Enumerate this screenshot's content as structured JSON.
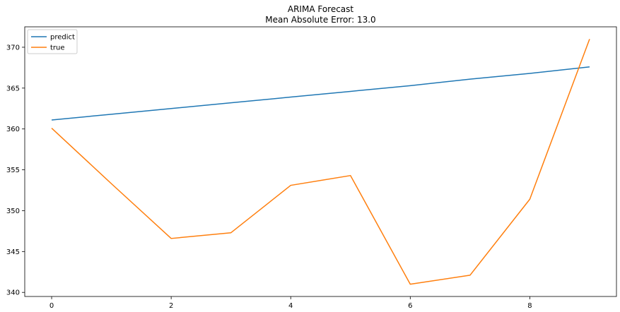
{
  "chart_data": {
    "type": "line",
    "title": "ARIMA Forecast",
    "subtitle": "Mean Absolute Error: 13.0",
    "xlabel": "",
    "ylabel": "",
    "xlim": [
      -0.45,
      9.45
    ],
    "ylim": [
      339.5,
      372.5
    ],
    "xticks": [
      0,
      2,
      4,
      6,
      8
    ],
    "yticks": [
      340,
      345,
      350,
      355,
      360,
      365,
      370
    ],
    "grid": false,
    "legend_position": "top-left",
    "x": [
      0,
      1,
      2,
      3,
      4,
      5,
      6,
      7,
      8,
      9
    ],
    "series": [
      {
        "name": "predict",
        "color": "#1f77b4",
        "values": [
          361.1,
          361.8,
          362.5,
          363.2,
          363.9,
          364.6,
          365.3,
          366.1,
          366.8,
          367.6
        ]
      },
      {
        "name": "true",
        "color": "#ff7f0e",
        "values": [
          360.1,
          353.3,
          346.6,
          347.3,
          353.1,
          354.3,
          341.0,
          342.1,
          351.4,
          371.0
        ]
      }
    ]
  }
}
